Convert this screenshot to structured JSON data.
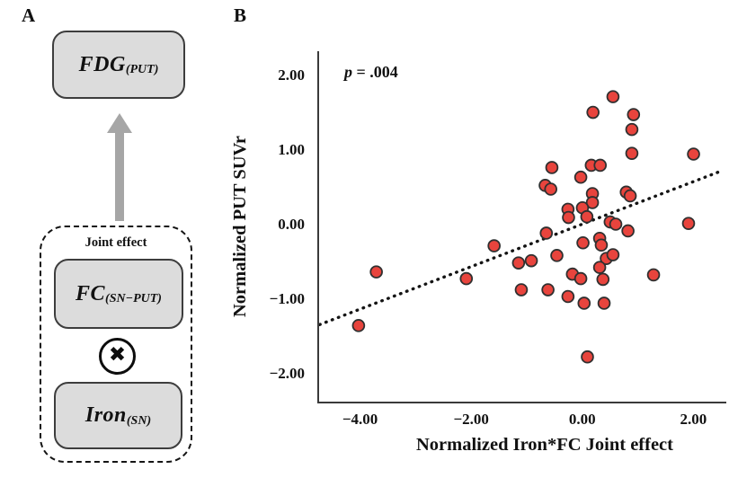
{
  "panel_a": {
    "label": "A",
    "fdg": {
      "main": "FDG",
      "sub": "(PUT)"
    },
    "joint_effect_label": "Joint effect",
    "fc": {
      "main": "FC",
      "sub": "(SN−PUT)"
    },
    "multiply_symbol": "✖",
    "iron": {
      "main": "Iron",
      "sub": "(SN)"
    },
    "box_fill_color": "#dcdcdc",
    "box_border_color": "#3d3d3d",
    "arrow_color": "#a6a6a6"
  },
  "panel_b": {
    "label": "B",
    "p_annotation": {
      "var": "p",
      "rest": " = .004"
    }
  },
  "chart_data": {
    "type": "scatter",
    "title": "",
    "xlabel": "Normalized Iron*FC Joint effect",
    "ylabel": "Normalized PUT SUVr",
    "annotation": "p = .004",
    "xlim": [
      -4.77,
      2.56
    ],
    "ylim": [
      -2.37,
      2.33
    ],
    "x_ticks": [
      -4,
      -2,
      0,
      2
    ],
    "x_tick_labels": [
      "−4.00",
      "−2.00",
      "0.00",
      "2.00"
    ],
    "y_ticks": [
      2,
      1,
      0,
      -1,
      -2
    ],
    "y_tick_labels": [
      "2.00",
      "1.00",
      "0.00",
      "−1.00",
      "−2.00"
    ],
    "grid": false,
    "legend": null,
    "point_color": "#e8443d",
    "point_edge_color": "#303030",
    "axis_color": "#3a3a3a",
    "trendline": {
      "slope": 0.285,
      "intercept": 0.02,
      "x_start": -4.76,
      "x_end": 2.46,
      "style": "dotted",
      "color": "#141414"
    },
    "points": [
      [
        0.52,
        1.72
      ],
      [
        0.16,
        1.51
      ],
      [
        0.89,
        1.48
      ],
      [
        0.86,
        1.28
      ],
      [
        0.86,
        0.96
      ],
      [
        1.97,
        0.95
      ],
      [
        -0.58,
        0.77
      ],
      [
        0.13,
        0.8
      ],
      [
        0.29,
        0.8
      ],
      [
        -0.06,
        0.64
      ],
      [
        -0.7,
        0.53
      ],
      [
        -0.6,
        0.48
      ],
      [
        0.15,
        0.42
      ],
      [
        0.76,
        0.44
      ],
      [
        0.83,
        0.39
      ],
      [
        0.15,
        0.3
      ],
      [
        -0.29,
        0.21
      ],
      [
        -0.03,
        0.23
      ],
      [
        -0.28,
        0.1
      ],
      [
        0.05,
        0.11
      ],
      [
        0.47,
        0.04
      ],
      [
        0.57,
        0.01
      ],
      [
        0.79,
        -0.08
      ],
      [
        -0.68,
        -0.11
      ],
      [
        1.88,
        0.02
      ],
      [
        -1.62,
        -0.28
      ],
      [
        -0.02,
        -0.24
      ],
      [
        0.28,
        -0.18
      ],
      [
        0.31,
        -0.27
      ],
      [
        -0.49,
        -0.41
      ],
      [
        -0.95,
        -0.48
      ],
      [
        -1.18,
        -0.51
      ],
      [
        0.4,
        -0.45
      ],
      [
        0.52,
        -0.4
      ],
      [
        0.28,
        -0.57
      ],
      [
        -0.21,
        -0.66
      ],
      [
        -0.06,
        -0.72
      ],
      [
        0.34,
        -0.73
      ],
      [
        -3.74,
        -0.63
      ],
      [
        -2.12,
        -0.72
      ],
      [
        -1.13,
        -0.87
      ],
      [
        -0.65,
        -0.87
      ],
      [
        -0.29,
        -0.96
      ],
      [
        0.0,
        -1.05
      ],
      [
        0.36,
        -1.05
      ],
      [
        1.25,
        -0.67
      ],
      [
        -4.06,
        -1.35
      ],
      [
        0.06,
        -1.77
      ]
    ]
  }
}
